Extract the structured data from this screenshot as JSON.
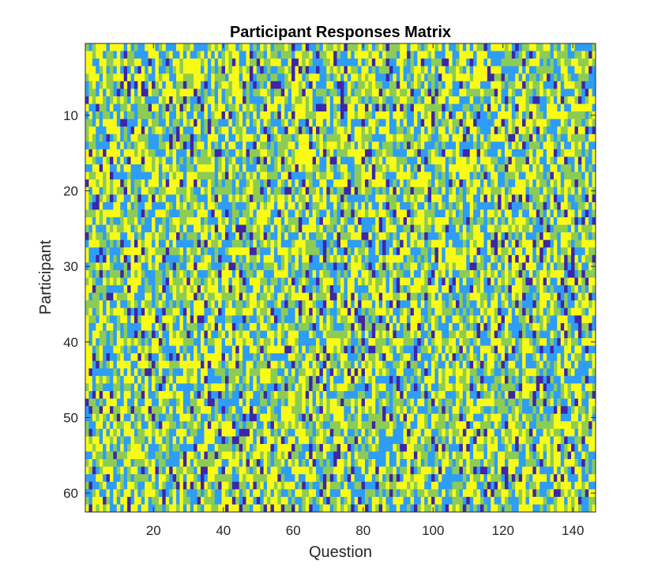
{
  "chart_data": {
    "type": "heatmap",
    "title": "Participant Responses Matrix",
    "xlabel": "Question",
    "ylabel": "Participant",
    "xlim": [
      0.5,
      146.5
    ],
    "ylim": [
      0.5,
      62.5
    ],
    "y_axis_reversed": true,
    "n_rows": 62,
    "n_cols": 146,
    "x_ticks": [
      20,
      40,
      60,
      80,
      100,
      120,
      140
    ],
    "y_ticks": [
      10,
      20,
      30,
      40,
      50,
      60
    ],
    "value_levels": [
      1,
      2,
      3,
      4
    ],
    "colormap": [
      "#3e26a8",
      "#2e9df7",
      "#8ccc55",
      "#f9fb15"
    ],
    "colorbar": false,
    "grid": false
  }
}
